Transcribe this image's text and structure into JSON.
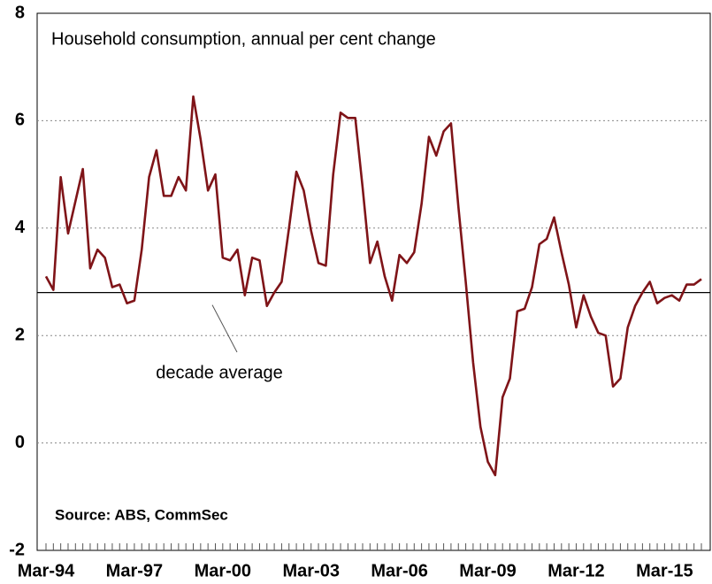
{
  "chart_data": {
    "type": "line",
    "subtitle": "Household consumption, annual per cent change",
    "source": "Source: ABS, CommSec",
    "categories": [
      "Mar-94",
      null,
      null,
      null,
      null,
      null,
      null,
      null,
      null,
      null,
      null,
      null,
      "Mar-97",
      null,
      null,
      null,
      null,
      null,
      null,
      null,
      null,
      null,
      null,
      null,
      "Mar-00",
      null,
      null,
      null,
      null,
      null,
      null,
      null,
      null,
      null,
      null,
      null,
      "Mar-03",
      null,
      null,
      null,
      null,
      null,
      null,
      null,
      null,
      null,
      null,
      null,
      "Mar-06",
      null,
      null,
      null,
      null,
      null,
      null,
      null,
      null,
      null,
      null,
      null,
      "Mar-09",
      null,
      null,
      null,
      null,
      null,
      null,
      null,
      null,
      null,
      null,
      null,
      "Mar-12",
      null,
      null,
      null,
      null,
      null,
      null,
      null,
      null,
      null,
      null,
      null,
      "Mar-15",
      null,
      null,
      null,
      null,
      null
    ],
    "series": [
      {
        "color": "#7f1418",
        "values": [
          3.1,
          2.85,
          4.95,
          3.9,
          4.5,
          5.1,
          3.25,
          3.6,
          3.45,
          2.9,
          2.95,
          2.6,
          2.65,
          3.6,
          4.95,
          5.45,
          4.6,
          4.6,
          4.95,
          4.7,
          6.45,
          5.65,
          4.7,
          5.0,
          3.45,
          3.4,
          3.6,
          2.75,
          3.45,
          3.4,
          2.55,
          2.8,
          3.0,
          4.0,
          5.05,
          4.7,
          3.95,
          3.35,
          3.3,
          5.0,
          6.15,
          6.05,
          6.05,
          4.75,
          3.35,
          3.75,
          3.1,
          2.65,
          3.5,
          3.35,
          3.55,
          4.45,
          5.7,
          5.35,
          5.8,
          5.95,
          4.4,
          3.0,
          1.5,
          0.3,
          -0.35,
          -0.6,
          0.85,
          1.2,
          2.45,
          2.5,
          2.9,
          3.7,
          3.8,
          4.2,
          3.55,
          2.95,
          2.15,
          2.75,
          2.35,
          2.05,
          2.0,
          1.05,
          1.2,
          2.15,
          2.55,
          2.8,
          3.0,
          2.6,
          2.7,
          2.75,
          2.65,
          2.95,
          2.95,
          3.05
        ]
      }
    ],
    "reference_line": {
      "value": 2.8,
      "label": "decade average"
    },
    "ylim": [
      -2,
      8
    ],
    "yticks": [
      -2,
      0,
      2,
      4,
      6,
      8
    ],
    "grid": true
  }
}
